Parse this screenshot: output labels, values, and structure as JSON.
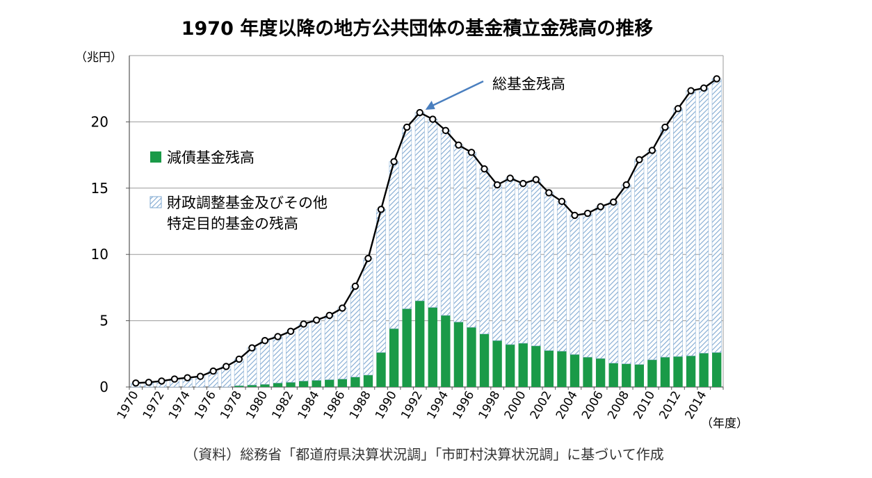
{
  "chart_data": {
    "type": "bar",
    "stacked": true,
    "title": "1970 年度以降の地方公共団体の基金積立金残高の推移",
    "ylabel": "（兆円）",
    "xlabel": "（年度）",
    "ylim": [
      0,
      25
    ],
    "yticks": [
      0,
      5,
      10,
      15,
      20
    ],
    "categories": [
      "1970",
      "1971",
      "1972",
      "1973",
      "1974",
      "1975",
      "1976",
      "1977",
      "1978",
      "1979",
      "1980",
      "1981",
      "1982",
      "1983",
      "1984",
      "1985",
      "1986",
      "1987",
      "1988",
      "1989",
      "1990",
      "1991",
      "1992",
      "1993",
      "1994",
      "1995",
      "1996",
      "1997",
      "1998",
      "1999",
      "2000",
      "2001",
      "2002",
      "2003",
      "2004",
      "2005",
      "2006",
      "2007",
      "2008",
      "2009",
      "2010",
      "2011",
      "2012",
      "2013",
      "2014",
      "2015"
    ],
    "x_tick_labels": [
      "1970",
      "1972",
      "1974",
      "1976",
      "1978",
      "1980",
      "1982",
      "1984",
      "1986",
      "1988",
      "1990",
      "1992",
      "1994",
      "1996",
      "1998",
      "2000",
      "2002",
      "2004",
      "2006",
      "2008",
      "2010",
      "2012",
      "2014"
    ],
    "series": [
      {
        "name": "減債基金残高",
        "color": "#1a9a48",
        "pattern": "solid",
        "values": [
          0.0,
          0.0,
          0.0,
          0.0,
          0.0,
          0.0,
          0.0,
          0.0,
          0.1,
          0.15,
          0.2,
          0.3,
          0.35,
          0.45,
          0.5,
          0.55,
          0.6,
          0.75,
          0.9,
          2.6,
          4.4,
          5.9,
          6.5,
          6.0,
          5.4,
          4.9,
          4.5,
          4.0,
          3.5,
          3.2,
          3.3,
          3.1,
          2.75,
          2.7,
          2.45,
          2.25,
          2.15,
          1.8,
          1.75,
          1.7,
          2.05,
          2.25,
          2.3,
          2.35,
          2.55,
          2.6
        ]
      },
      {
        "name": "財政調整基金及びその他特定目的基金の残高",
        "color": "#bcd4ec",
        "pattern": "hatched",
        "values": [
          0.3,
          0.35,
          0.45,
          0.6,
          0.7,
          0.8,
          1.2,
          1.55,
          2.0,
          2.8,
          3.3,
          3.5,
          3.85,
          4.3,
          4.55,
          4.85,
          5.35,
          6.85,
          8.8,
          10.8,
          12.6,
          13.7,
          14.2,
          14.2,
          13.95,
          13.35,
          13.2,
          12.45,
          11.75,
          12.55,
          12.05,
          12.55,
          11.9,
          11.3,
          10.5,
          10.85,
          11.45,
          12.15,
          13.5,
          15.45,
          15.8,
          17.35,
          18.7,
          20.0,
          20.0,
          20.65
        ]
      },
      {
        "name": "総基金残高",
        "color": "#000000",
        "type": "line",
        "values": [
          0.3,
          0.35,
          0.45,
          0.6,
          0.7,
          0.8,
          1.2,
          1.55,
          2.1,
          2.95,
          3.5,
          3.8,
          4.2,
          4.75,
          5.05,
          5.4,
          5.95,
          7.6,
          9.7,
          13.4,
          17.0,
          19.6,
          20.7,
          20.2,
          19.35,
          18.25,
          17.7,
          16.45,
          15.25,
          15.75,
          15.35,
          15.65,
          14.65,
          14.0,
          12.95,
          13.1,
          13.6,
          13.95,
          15.25,
          17.15,
          17.85,
          19.6,
          21.0,
          22.35,
          22.55,
          23.25
        ]
      }
    ],
    "legend": [
      {
        "label": "減債基金残高",
        "series": 0
      },
      {
        "label": "財政調整基金及びその他",
        "label2": "特定目的基金の残高",
        "series": 1
      }
    ],
    "annotation": {
      "text": "総基金残高",
      "target_index": 22
    },
    "source": "（資料）総務省「都道府県決算状況調」「市町村決算状況調」に基づいて作成",
    "grid": true
  }
}
